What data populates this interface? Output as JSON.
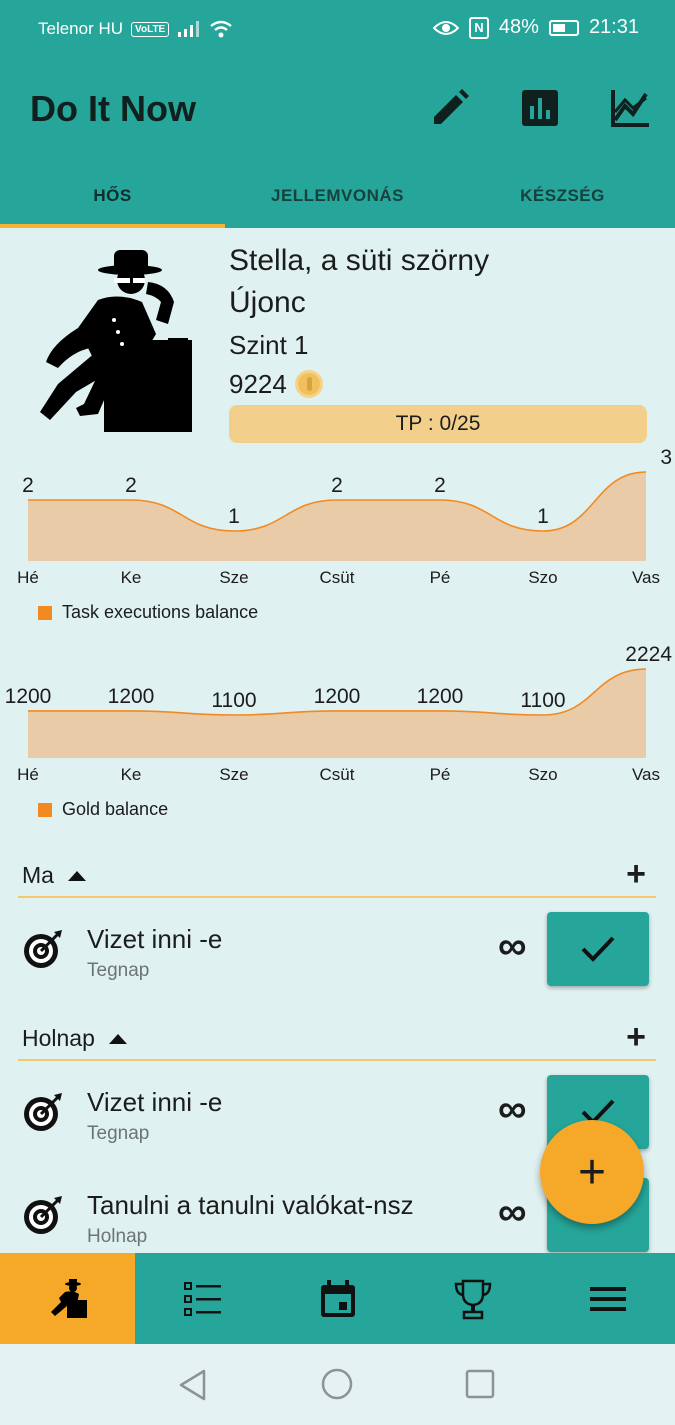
{
  "status_bar": {
    "carrier": "Telenor HU",
    "volte": "VoLTE",
    "nfc": "N",
    "battery": "48%",
    "time": "21:31"
  },
  "app": {
    "title": "Do It Now",
    "toolbar_icons": [
      "edit-icon",
      "bar-chart-icon",
      "line-chart-icon"
    ]
  },
  "tabs": [
    {
      "label": "HŐS",
      "active": true
    },
    {
      "label": "JELLEMVONÁS",
      "active": false
    },
    {
      "label": "KÉSZSÉG",
      "active": false
    }
  ],
  "hero": {
    "name": "Stella, a süti szörny",
    "rank": "Újonc",
    "level": "Szint 1",
    "gold": "9224",
    "tp_text": "TP : 0/25",
    "tp_progress": 0
  },
  "chart_data": [
    {
      "type": "area",
      "categories": [
        "Hé",
        "Ke",
        "Sze",
        "Csüt",
        "Pé",
        "Szo",
        "Vas"
      ],
      "series": [
        {
          "name": "Task executions balance",
          "values": [
            2,
            2,
            1,
            2,
            2,
            1,
            3
          ]
        }
      ],
      "value_labels": [
        "2",
        "2",
        "1",
        "2",
        "2",
        "1",
        "3"
      ],
      "color": "#f28a1f",
      "legend_position": "bottom-left"
    },
    {
      "type": "area",
      "categories": [
        "Hé",
        "Ke",
        "Sze",
        "Csüt",
        "Pé",
        "Szo",
        "Vas"
      ],
      "series": [
        {
          "name": "Gold balance",
          "values": [
            1200,
            1200,
            1100,
            1200,
            1200,
            1100,
            2224
          ]
        }
      ],
      "value_labels": [
        "1200",
        "1200",
        "1100",
        "1200",
        "1200",
        "1100",
        "2224"
      ],
      "color": "#f28a1f",
      "legend_position": "bottom-left"
    }
  ],
  "sections": [
    {
      "label": "Ma",
      "tasks": [
        {
          "title": "Vizet inni -e",
          "subtitle": "Tegnap",
          "repeat": "∞"
        }
      ]
    },
    {
      "label": "Holnap",
      "tasks": [
        {
          "title": "Vizet inni -e",
          "subtitle": "Tegnap",
          "repeat": "∞"
        },
        {
          "title": "Tanulni a tanulni valókat-nsz",
          "subtitle": "Holnap",
          "repeat": "∞"
        }
      ]
    }
  ],
  "fab": "+",
  "bottom_nav": [
    {
      "icon": "hero-icon",
      "active": true
    },
    {
      "icon": "task-list-icon",
      "active": false
    },
    {
      "icon": "calendar-icon",
      "active": false
    },
    {
      "icon": "trophy-icon",
      "active": false
    },
    {
      "icon": "menu-icon",
      "active": false
    }
  ]
}
